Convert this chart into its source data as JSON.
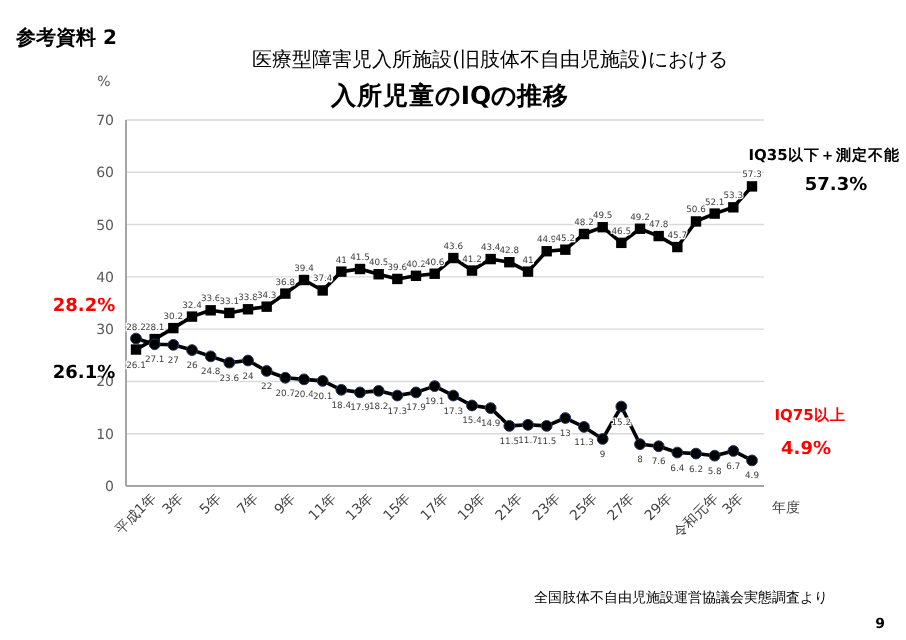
{
  "chart_data": {
    "type": "line",
    "title": "医療型障害児入所施設(旧肢体不自由児施設)における",
    "subtitle": "入所児童のIQの推移",
    "ylabel": "%",
    "xlabel": "年度",
    "categories": [
      "平成1年",
      null,
      "3年",
      null,
      "5年",
      null,
      "7年",
      null,
      "9年",
      null,
      "11年",
      null,
      "13年",
      null,
      "15年",
      null,
      "17年",
      null,
      "19年",
      null,
      "21年",
      null,
      "23年",
      null,
      "25年",
      null,
      "27年",
      null,
      "29年",
      null,
      "令和元年",
      null,
      "3年",
      null
    ],
    "series": [
      {
        "name": "IQ35以下＋測定不能",
        "color": "#000000",
        "marker": "square",
        "values": [
          26.1,
          28.1,
          30.2,
          32.4,
          33.6,
          33.1,
          33.8,
          34.3,
          36.8,
          39.4,
          37.4,
          41,
          41.5,
          40.5,
          39.6,
          40.2,
          40.6,
          43.6,
          41.2,
          43.4,
          42.8,
          41,
          44.9,
          45.2,
          48.2,
          49.5,
          46.5,
          49.2,
          47.8,
          45.7,
          50.6,
          52.1,
          53.3,
          57.3
        ]
      },
      {
        "name": "IQ75以上",
        "color": "#000000",
        "marker": "circle",
        "values": [
          28.2,
          27.1,
          27,
          26,
          24.8,
          23.6,
          24,
          22,
          20.7,
          20.4,
          20.1,
          18.4,
          17.9,
          18.2,
          17.3,
          17.9,
          19.1,
          17.3,
          15.4,
          14.9,
          11.5,
          11.7,
          11.5,
          13,
          11.3,
          9,
          15.2,
          8,
          7.6,
          6.4,
          6.2,
          5.8,
          6.7,
          4.9
        ]
      }
    ],
    "ylim": [
      0,
      70
    ],
    "yticks": [
      0,
      10,
      20,
      30,
      40,
      50,
      60,
      70
    ],
    "grid": "y",
    "data_labels": true,
    "annotations": [
      "参考資料 2",
      {
        "text": "28.2%",
        "x": "平成1年",
        "y": 28.2
      },
      {
        "text": "26.1%",
        "x": "平成1年",
        "y": 26.1
      },
      "57.3%",
      "4.9%",
      "全国肢体不自由児施設運営協議会実態調査より",
      "9"
    ]
  }
}
